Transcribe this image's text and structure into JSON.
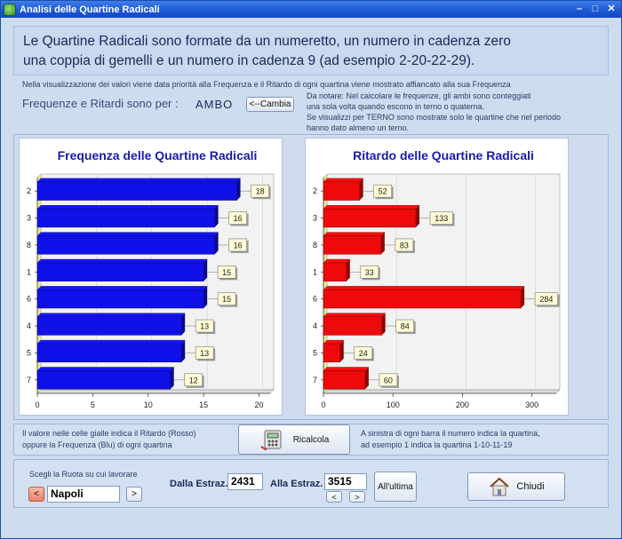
{
  "window": {
    "title": "Analisi delle Quartine  Radicali"
  },
  "headline": {
    "line1": "Le Quartine Radicali sono  formate da un numeretto, un numero in cadenza zero",
    "line2": "una coppia di  gemelli e un numero in cadenza 9 (ad esempio 2-20-22-29)."
  },
  "info": {
    "priority_text": "Nella visualizzazione dei valori viene data priorità alla Frequenza e il Ritardo di ogni quartina viene mostrato affiancato alla sua Frequenza",
    "freq_label": "Frequenze e Ritardi sono per :",
    "mode_value": "AMBO",
    "change_button": "<--Cambia",
    "note_lines": [
      "Da notare: Nel calcolare le frequenze, gli ambi sono conteggiati",
      "una sola volta quando escono in terno o quaterna.",
      "Se visualizzi per TERNO sono mostrate solo le quartine che nel periodo",
      "hanno dato almeno un terno."
    ]
  },
  "chart_data": [
    {
      "type": "bar",
      "orientation": "horizontal",
      "title": "Frequenza delle Quartine Radicali",
      "categories": [
        "2",
        "3",
        "8",
        "1",
        "6",
        "4",
        "5",
        "7"
      ],
      "values": [
        18,
        16,
        16,
        15,
        15,
        13,
        13,
        12
      ],
      "xlim": [
        0,
        21
      ],
      "xticks": [
        0,
        5,
        10,
        15,
        20
      ],
      "color": "#1010e8",
      "grid": true
    },
    {
      "type": "bar",
      "orientation": "horizontal",
      "title": "Ritardo delle Quartine Radicali",
      "categories": [
        "2",
        "3",
        "8",
        "1",
        "6",
        "4",
        "5",
        "7"
      ],
      "values": [
        52,
        133,
        83,
        33,
        284,
        84,
        24,
        60
      ],
      "xlim": [
        0,
        335
      ],
      "xticks": [
        0,
        100,
        200,
        300
      ],
      "color": "#ee0a0a",
      "grid": true
    }
  ],
  "footer_notes": {
    "left_line1": "Il valore nelle celle gialle indica il Ritardo (Rosso)",
    "left_line2": "oppure la Frequenza (Blu) di ogni quartina",
    "right_line1": "A sinistra di ogni barra il numero indica la quartina,",
    "right_line2": "ad esempio 1 indica la quartina 1-10-11-19"
  },
  "ricalcola_button": "Ricalcola",
  "controls": {
    "ruota_label": "Scegli la Ruota su cui lavorare",
    "ruota_value": "Napoli",
    "prev": "<",
    "next": ">",
    "dalla_label": "Dalla Estraz.",
    "dalla_value": "2431",
    "alla_label": "Alla Estraz.",
    "alla_value": "3515",
    "allultima_button": "All'ultima",
    "chiudi_button": "Chiudi"
  }
}
